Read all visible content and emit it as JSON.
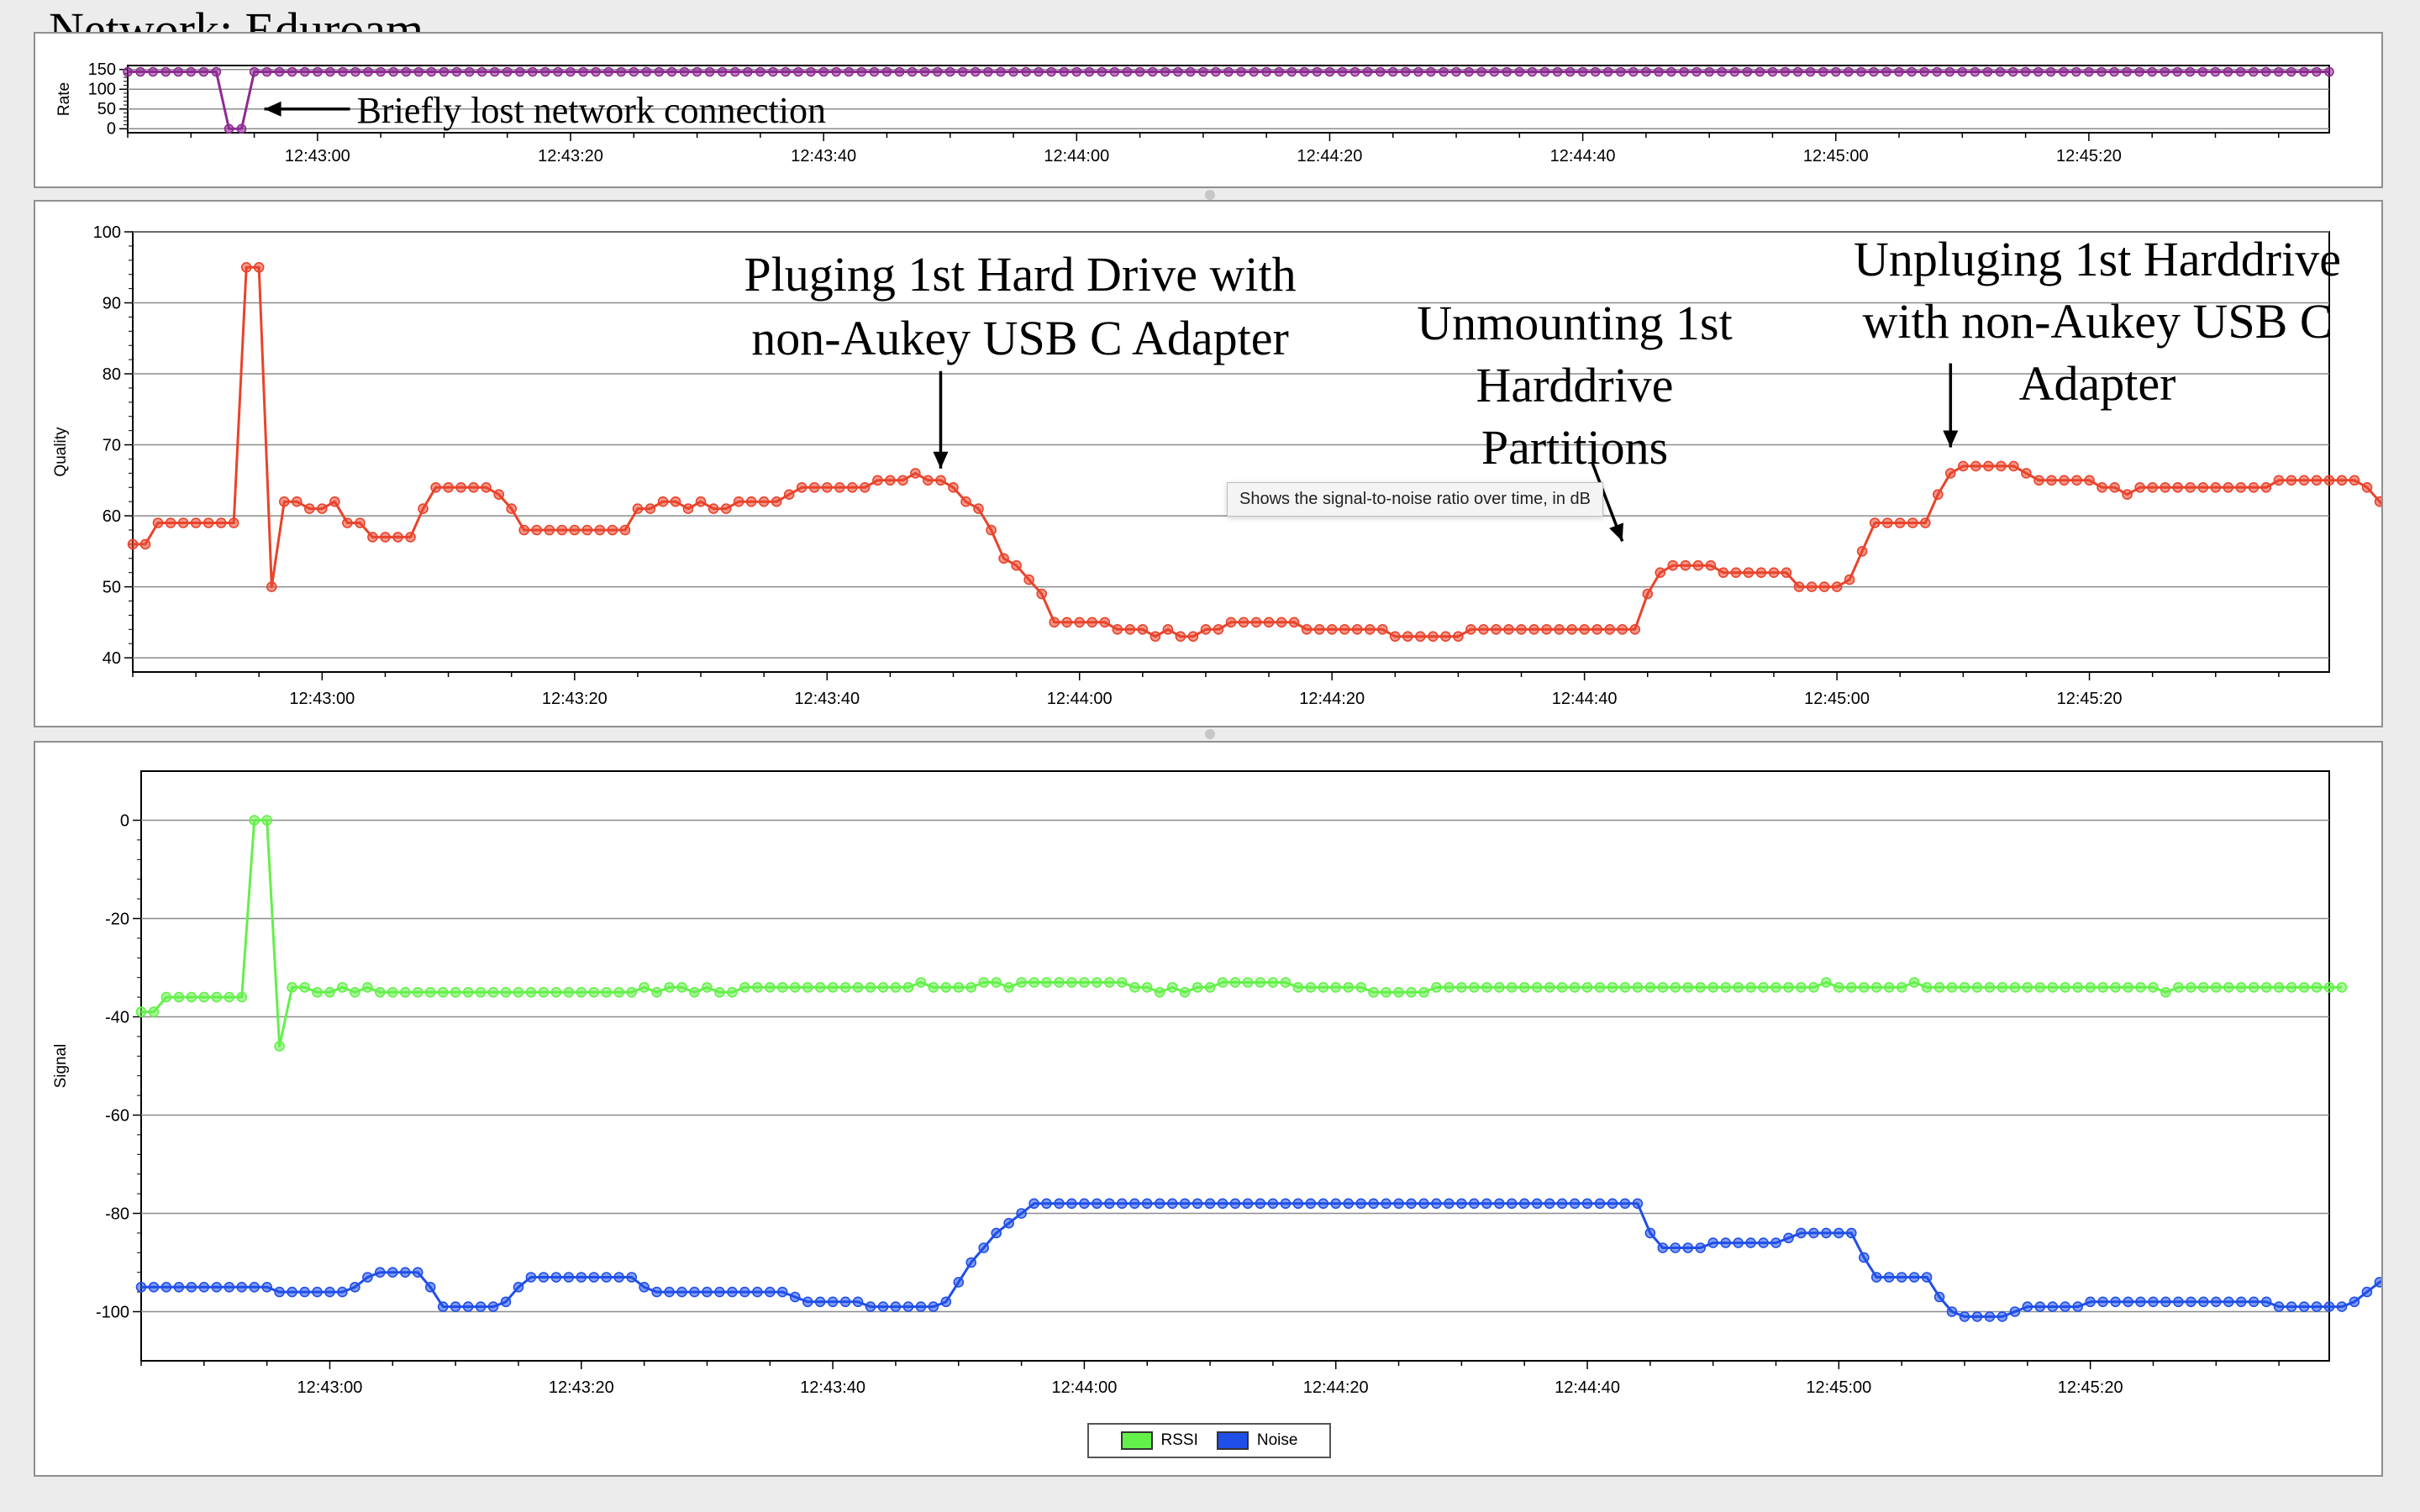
{
  "network_title": "Network: Eduroam",
  "tooltip": "Shows the signal-to-noise ratio over time, in dB",
  "colors": {
    "rate": "#8e2a93",
    "quality": "#e9432b",
    "rssi": "#64f04a",
    "noise": "#1f4fe8",
    "grid": "#8c8c8c"
  },
  "legend": {
    "items": [
      {
        "label": "RSSI",
        "color": "#64f04a"
      },
      {
        "label": "Noise",
        "color": "#1f4fe8"
      }
    ]
  },
  "chart_data": [
    {
      "id": "rate",
      "type": "line",
      "title": "",
      "ylabel": "Rate",
      "xlabel": "",
      "x_start": "12:42:45",
      "x_end": "12:45:39",
      "sample_interval_s": 1,
      "ylim": [
        -10,
        160
      ],
      "yticks": [
        0,
        50,
        100,
        150
      ],
      "ytick_labels": [
        "0",
        "50",
        "100",
        "150"
      ],
      "xtick_labels": [
        "12:43:00",
        "12:43:20",
        "12:43:40",
        "12:44:00",
        "12:44:20",
        "12:44:40",
        "12:45:00",
        "12:45:20"
      ],
      "grid": true,
      "series": [
        {
          "segments": [
            {
              "from": "12:42:45",
              "to": "12:42:52",
              "value": 144
            },
            {
              "from": "12:42:53",
              "to": "12:42:54",
              "value": 0
            },
            {
              "from": "12:42:55",
              "to": "12:45:39",
              "value": 144
            }
          ]
        }
      ],
      "annotations": [
        {
          "text": "Briefly lost network connection",
          "time": "12:42:55",
          "value": 50
        }
      ]
    },
    {
      "id": "quality",
      "type": "line",
      "title": "",
      "ylabel": "Quality",
      "xlabel": "",
      "x_start": "12:42:45",
      "x_end": "12:45:39",
      "sample_interval_s": 1,
      "ylim": [
        38,
        100
      ],
      "yticks": [
        40,
        50,
        60,
        70,
        80,
        90,
        100
      ],
      "ytick_labels": [
        "40",
        "50",
        "60",
        "70",
        "80",
        "90",
        "100"
      ],
      "xtick_labels": [
        "12:43:00",
        "12:43:20",
        "12:43:40",
        "12:44:00",
        "12:44:20",
        "12:44:40",
        "12:45:00",
        "12:45:20"
      ],
      "grid": true,
      "series": [
        {
          "values": [
            56,
            56,
            59,
            59,
            59,
            59,
            59,
            59,
            59,
            95,
            95,
            50,
            62,
            62,
            61,
            61,
            62,
            59,
            59,
            57,
            57,
            57,
            57,
            61,
            64,
            64,
            64,
            64,
            64,
            63,
            61,
            58,
            58,
            58,
            58,
            58,
            58,
            58,
            58,
            58,
            61,
            61,
            62,
            62,
            61,
            62,
            61,
            61,
            62,
            62,
            62,
            62,
            63,
            64,
            64,
            64,
            64,
            64,
            64,
            65,
            65,
            65,
            66,
            65,
            65,
            64,
            62,
            61,
            58,
            54,
            53,
            51,
            49,
            45,
            45,
            45,
            45,
            45,
            44,
            44,
            44,
            43,
            44,
            43,
            43,
            44,
            44,
            45,
            45,
            45,
            45,
            45,
            45,
            44,
            44,
            44,
            44,
            44,
            44,
            44,
            43,
            43,
            43,
            43,
            43,
            43,
            44,
            44,
            44,
            44,
            44,
            44,
            44,
            44,
            44,
            44,
            44,
            44,
            44,
            44,
            49,
            52,
            53,
            53,
            53,
            53,
            52,
            52,
            52,
            52,
            52,
            52,
            50,
            50,
            50,
            50,
            51,
            55,
            59,
            59,
            59,
            59,
            59,
            63,
            66,
            67,
            67,
            67,
            67,
            67,
            66,
            65,
            65,
            65,
            65,
            65,
            64,
            64,
            63,
            64,
            64,
            64,
            64,
            64,
            64,
            64,
            64,
            64,
            64,
            64,
            65,
            65,
            65,
            65,
            65,
            65,
            65,
            64,
            62,
            60
          ]
        }
      ],
      "annotations": [
        {
          "lines": [
            "Pluging 1st Hard Drive with",
            "non-Aukey USB C Adapter"
          ],
          "time": "12:43:49",
          "value": 65
        },
        {
          "lines": [
            "Unmounting 1st",
            "Harddrive",
            "Partitions"
          ],
          "time": "12:44:43",
          "value": 55
        },
        {
          "lines": [
            "Unpluging 1st Harddrive",
            "with non-Aukey USB C",
            "Adapter"
          ],
          "time": "12:45:09",
          "value": 68
        }
      ]
    },
    {
      "id": "signal",
      "type": "line",
      "title": "",
      "ylabel": "Signal",
      "xlabel": "",
      "x_start": "12:42:45",
      "x_end": "12:45:39",
      "sample_interval_s": 1,
      "ylim": [
        -110,
        10
      ],
      "yticks": [
        -100,
        -80,
        -60,
        -40,
        -20,
        0
      ],
      "ytick_labels": [
        "-100",
        "-80",
        "-60",
        "-40",
        "-20",
        "0"
      ],
      "xtick_labels": [
        "12:43:00",
        "12:43:20",
        "12:43:40",
        "12:44:00",
        "12:44:20",
        "12:44:40",
        "12:45:00",
        "12:45:20"
      ],
      "grid": true,
      "legend": "bottom-center",
      "series": [
        {
          "name": "RSSI",
          "values": [
            -39,
            -39,
            -36,
            -36,
            -36,
            -36,
            -36,
            -36,
            -36,
            0,
            0,
            -46,
            -34,
            -34,
            -35,
            -35,
            -34,
            -35,
            -34,
            -35,
            -35,
            -35,
            -35,
            -35,
            -35,
            -35,
            -35,
            -35,
            -35,
            -35,
            -35,
            -35,
            -35,
            -35,
            -35,
            -35,
            -35,
            -35,
            -35,
            -35,
            -34,
            -35,
            -34,
            -34,
            -35,
            -34,
            -35,
            -35,
            -34,
            -34,
            -34,
            -34,
            -34,
            -34,
            -34,
            -34,
            -34,
            -34,
            -34,
            -34,
            -34,
            -34,
            -33,
            -34,
            -34,
            -34,
            -34,
            -33,
            -33,
            -34,
            -33,
            -33,
            -33,
            -33,
            -33,
            -33,
            -33,
            -33,
            -33,
            -34,
            -34,
            -35,
            -34,
            -35,
            -34,
            -34,
            -33,
            -33,
            -33,
            -33,
            -33,
            -33,
            -34,
            -34,
            -34,
            -34,
            -34,
            -34,
            -35,
            -35,
            -35,
            -35,
            -35,
            -34,
            -34,
            -34,
            -34,
            -34,
            -34,
            -34,
            -34,
            -34,
            -34,
            -34,
            -34,
            -34,
            -34,
            -34,
            -34,
            -34,
            -34,
            -34,
            -34,
            -34,
            -34,
            -34,
            -34,
            -34,
            -34,
            -34,
            -34,
            -34,
            -34,
            -34,
            -33,
            -34,
            -34,
            -34,
            -34,
            -34,
            -34,
            -33,
            -34,
            -34,
            -34,
            -34,
            -34,
            -34,
            -34,
            -34,
            -34,
            -34,
            -34,
            -34,
            -34,
            -34,
            -34,
            -34,
            -34,
            -34,
            -34,
            -35,
            -34,
            -34,
            -34,
            -34,
            -34,
            -34,
            -34,
            -34,
            -34,
            -34,
            -34,
            -34,
            -34,
            -34
          ]
        },
        {
          "name": "Noise",
          "values": [
            -95,
            -95,
            -95,
            -95,
            -95,
            -95,
            -95,
            -95,
            -95,
            -95,
            -95,
            -96,
            -96,
            -96,
            -96,
            -96,
            -96,
            -95,
            -93,
            -92,
            -92,
            -92,
            -92,
            -95,
            -99,
            -99,
            -99,
            -99,
            -99,
            -98,
            -95,
            -93,
            -93,
            -93,
            -93,
            -93,
            -93,
            -93,
            -93,
            -93,
            -95,
            -96,
            -96,
            -96,
            -96,
            -96,
            -96,
            -96,
            -96,
            -96,
            -96,
            -96,
            -97,
            -98,
            -98,
            -98,
            -98,
            -98,
            -99,
            -99,
            -99,
            -99,
            -99,
            -99,
            -98,
            -94,
            -90,
            -87,
            -84,
            -82,
            -80,
            -78,
            -78,
            -78,
            -78,
            -78,
            -78,
            -78,
            -78,
            -78,
            -78,
            -78,
            -78,
            -78,
            -78,
            -78,
            -78,
            -78,
            -78,
            -78,
            -78,
            -78,
            -78,
            -78,
            -78,
            -78,
            -78,
            -78,
            -78,
            -78,
            -78,
            -78,
            -78,
            -78,
            -78,
            -78,
            -78,
            -78,
            -78,
            -78,
            -78,
            -78,
            -78,
            -78,
            -78,
            -78,
            -78,
            -78,
            -78,
            -78,
            -84,
            -87,
            -87,
            -87,
            -87,
            -86,
            -86,
            -86,
            -86,
            -86,
            -86,
            -85,
            -84,
            -84,
            -84,
            -84,
            -84,
            -89,
            -93,
            -93,
            -93,
            -93,
            -93,
            -97,
            -100,
            -101,
            -101,
            -101,
            -101,
            -100,
            -99,
            -99,
            -99,
            -99,
            -99,
            -98,
            -98,
            -98,
            -98,
            -98,
            -98,
            -98,
            -98,
            -98,
            -98,
            -98,
            -98,
            -98,
            -98,
            -98,
            -99,
            -99,
            -99,
            -99,
            -99,
            -99,
            -98,
            -96,
            -94,
            -93
          ]
        }
      ]
    }
  ]
}
